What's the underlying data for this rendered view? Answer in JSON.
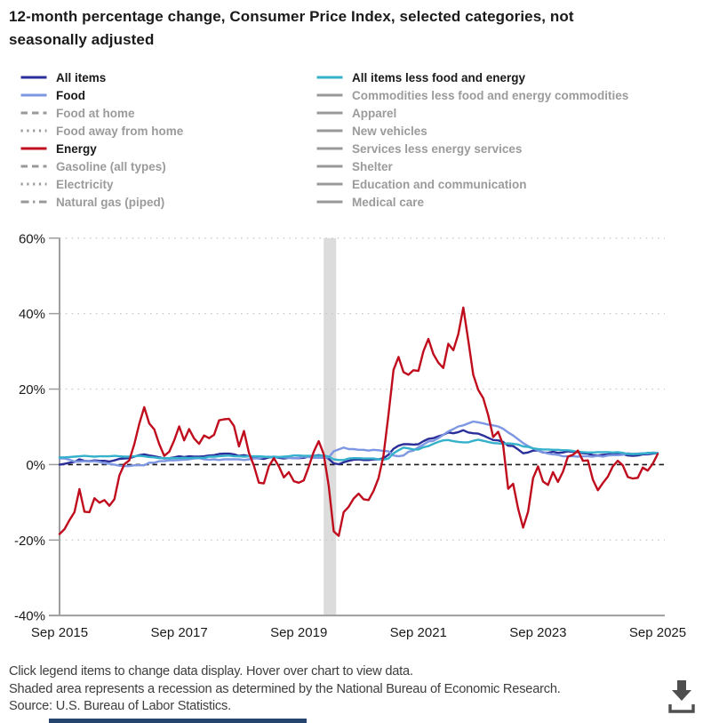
{
  "title": {
    "lines": [
      "12-month percentage change, Consumer Price Index, selected categories, not",
      "seasonally adjusted"
    ]
  },
  "legend": {
    "columns": [
      {
        "side": "left",
        "items": [
          {
            "label": "All items",
            "color": "#2a2f9a",
            "style": "solid",
            "active": true
          },
          {
            "label": "Food",
            "color": "#7e97e3",
            "style": "solid",
            "active": true
          },
          {
            "label": "Food at home",
            "color": "#999999",
            "style": "dashed",
            "active": false
          },
          {
            "label": "Food away from home",
            "color": "#999999",
            "style": "dotted",
            "active": false
          },
          {
            "label": "Energy",
            "color": "#c00d1e",
            "style": "solid",
            "active": true
          },
          {
            "label": "Gasoline (all types)",
            "color": "#999999",
            "style": "dashed",
            "active": false
          },
          {
            "label": "Electricity",
            "color": "#999999",
            "style": "dotted",
            "active": false
          },
          {
            "label": "Natural gas (piped)",
            "color": "#999999",
            "style": "dashdot",
            "active": false
          }
        ]
      },
      {
        "side": "right",
        "items": [
          {
            "label": "All items less food and energy",
            "color": "#35b1cb",
            "style": "solid",
            "active": true
          },
          {
            "label": "Commodities less food and energy commodities",
            "color": "#999999",
            "style": "solid",
            "active": false
          },
          {
            "label": "Apparel",
            "color": "#999999",
            "style": "solid",
            "active": false
          },
          {
            "label": "New vehicles",
            "color": "#999999",
            "style": "solid",
            "active": false
          },
          {
            "label": "Services less energy services",
            "color": "#999999",
            "style": "solid",
            "active": false
          },
          {
            "label": "Shelter",
            "color": "#999999",
            "style": "solid",
            "active": false
          },
          {
            "label": "Education and communication",
            "color": "#999999",
            "style": "solid",
            "active": false
          },
          {
            "label": "Medical care",
            "color": "#999999",
            "style": "solid",
            "active": false
          }
        ]
      }
    ]
  },
  "chart_data": {
    "type": "line",
    "x_unit": "month",
    "x_start_label": "Sep 2015",
    "x_end_label": "Sep 2025",
    "x_months_count": 121,
    "ylim": [
      -40,
      60
    ],
    "grid": "dotted horizontal at 60,40,20,-20; dashed black line at 0",
    "legend_position": "top, two columns, click to toggle",
    "x_ticks": [
      {
        "label": "Sep 2015",
        "month": 0
      },
      {
        "label": "Sep 2017",
        "month": 24
      },
      {
        "label": "Sep 2019",
        "month": 48
      },
      {
        "label": "Sep 2021",
        "month": 72
      },
      {
        "label": "Sep 2023",
        "month": 96
      },
      {
        "label": "Sep 2025",
        "month": 120
      }
    ],
    "y_ticks": [
      {
        "label": "60%",
        "value": 60
      },
      {
        "label": "40%",
        "value": 40
      },
      {
        "label": "20%",
        "value": 20
      },
      {
        "label": "0%",
        "value": 0
      },
      {
        "label": "-20%",
        "value": -20
      },
      {
        "label": "-40%",
        "value": -40
      }
    ],
    "recession_band": {
      "start_month": 53,
      "end_month": 55.5,
      "note": "Feb-Apr 2020 recession"
    },
    "colors": {
      "recession_band": "#dcdcdc",
      "gridline": "#c9c9c9",
      "axis": "#9e9e9e",
      "zero_line": "#1a1a1a"
    },
    "series": [
      {
        "id": "all-items",
        "name": "All items",
        "color": "#2a2f9a",
        "values": [
          0.0,
          0.2,
          0.5,
          0.7,
          1.4,
          1.0,
          0.9,
          1.1,
          1.0,
          1.0,
          0.8,
          1.1,
          1.5,
          1.6,
          1.7,
          2.1,
          2.5,
          2.7,
          2.4,
          2.2,
          1.9,
          1.6,
          1.7,
          1.9,
          2.2,
          2.0,
          2.2,
          2.1,
          2.1,
          2.2,
          2.4,
          2.5,
          2.8,
          2.9,
          2.9,
          2.7,
          2.3,
          2.5,
          2.2,
          1.9,
          1.6,
          1.5,
          1.9,
          2.0,
          1.8,
          1.6,
          1.8,
          1.7,
          1.7,
          1.8,
          2.1,
          2.3,
          2.5,
          2.3,
          1.5,
          0.3,
          0.1,
          0.6,
          1.0,
          1.3,
          1.4,
          1.2,
          1.2,
          1.4,
          1.4,
          1.7,
          2.6,
          4.2,
          5.0,
          5.4,
          5.4,
          5.3,
          5.4,
          6.2,
          6.8,
          7.0,
          7.5,
          7.9,
          8.5,
          8.3,
          8.6,
          9.1,
          8.5,
          8.3,
          8.2,
          7.7,
          7.1,
          6.5,
          6.4,
          6.0,
          5.0,
          4.9,
          4.0,
          3.0,
          3.2,
          3.7,
          3.7,
          3.2,
          3.1,
          3.4,
          3.1,
          3.2,
          3.5,
          3.4,
          3.3,
          3.0,
          2.9,
          2.5,
          2.4,
          2.6,
          2.7,
          2.9,
          3.0,
          2.8,
          2.4,
          2.3,
          2.4,
          2.7,
          2.7,
          2.9,
          3.0
        ]
      },
      {
        "id": "food",
        "name": "Food",
        "color": "#7e97e3",
        "values": [
          1.6,
          1.6,
          1.3,
          0.8,
          0.8,
          0.9,
          0.8,
          0.9,
          0.7,
          0.3,
          0.2,
          0.0,
          -0.3,
          -0.4,
          -0.4,
          -0.2,
          -0.2,
          -0.2,
          0.5,
          0.5,
          0.9,
          0.9,
          1.1,
          1.1,
          1.2,
          1.3,
          1.4,
          1.6,
          1.7,
          1.4,
          1.3,
          1.4,
          1.2,
          1.4,
          1.4,
          1.4,
          1.4,
          1.2,
          1.4,
          1.6,
          1.6,
          2.0,
          2.1,
          1.8,
          2.0,
          1.9,
          1.8,
          1.7,
          1.8,
          2.1,
          2.0,
          1.8,
          1.8,
          1.8,
          1.9,
          3.5,
          4.0,
          4.5,
          4.1,
          4.1,
          3.9,
          3.9,
          3.7,
          3.9,
          3.8,
          3.6,
          3.5,
          2.4,
          2.2,
          2.4,
          3.4,
          3.7,
          4.6,
          5.3,
          6.1,
          6.3,
          7.0,
          7.9,
          8.8,
          9.4,
          10.1,
          10.4,
          10.9,
          11.4,
          11.2,
          10.9,
          10.6,
          10.4,
          10.1,
          9.5,
          8.5,
          7.7,
          6.7,
          5.7,
          4.9,
          4.3,
          3.7,
          3.3,
          2.9,
          2.7,
          2.6,
          2.2,
          2.2,
          2.2,
          2.1,
          2.2,
          2.2,
          2.1,
          2.3,
          2.1,
          2.4,
          2.5,
          2.5,
          2.6,
          3.0,
          2.8,
          2.9,
          3.0,
          2.9,
          3.2,
          3.1
        ]
      },
      {
        "id": "core",
        "name": "All items less food and energy",
        "color": "#35b1cb",
        "values": [
          1.9,
          1.9,
          2.0,
          2.1,
          2.2,
          2.3,
          2.2,
          2.1,
          2.2,
          2.2,
          2.2,
          2.3,
          2.2,
          2.1,
          2.1,
          2.2,
          2.3,
          2.2,
          2.0,
          1.9,
          1.7,
          1.7,
          1.7,
          1.7,
          1.7,
          1.8,
          1.7,
          1.8,
          1.8,
          1.8,
          2.1,
          2.1,
          2.2,
          2.3,
          2.4,
          2.2,
          2.2,
          2.1,
          2.2,
          2.2,
          2.2,
          2.1,
          2.0,
          2.1,
          2.0,
          2.1,
          2.2,
          2.4,
          2.4,
          2.3,
          2.3,
          2.3,
          2.3,
          2.4,
          2.1,
          1.4,
          1.2,
          1.2,
          1.6,
          1.7,
          1.7,
          1.6,
          1.6,
          1.6,
          1.4,
          1.3,
          1.6,
          3.0,
          3.8,
          4.5,
          4.3,
          4.0,
          4.0,
          4.6,
          4.9,
          5.5,
          6.0,
          6.4,
          6.5,
          6.2,
          6.0,
          5.9,
          5.9,
          6.3,
          6.6,
          6.3,
          6.0,
          5.7,
          5.6,
          5.5,
          5.6,
          5.5,
          5.3,
          4.8,
          4.7,
          4.3,
          4.1,
          4.0,
          4.0,
          3.9,
          3.9,
          3.8,
          3.8,
          3.6,
          3.4,
          3.3,
          3.2,
          3.2,
          3.3,
          3.3,
          3.3,
          3.2,
          3.3,
          3.1,
          2.8,
          2.8,
          2.8,
          2.9,
          3.1,
          3.1,
          3.0
        ]
      },
      {
        "id": "energy",
        "name": "Energy",
        "color": "#c00d1e",
        "values": [
          -18.4,
          -17.1,
          -14.7,
          -12.6,
          -6.5,
          -12.5,
          -12.6,
          -8.9,
          -10.1,
          -9.4,
          -10.9,
          -9.2,
          -2.9,
          0.1,
          1.1,
          5.4,
          10.8,
          15.2,
          10.9,
          9.3,
          5.4,
          2.3,
          3.4,
          6.4,
          10.1,
          6.4,
          9.4,
          6.9,
          5.5,
          7.7,
          7.0,
          7.9,
          11.7,
          12.0,
          12.1,
          10.2,
          4.8,
          8.9,
          3.1,
          -0.3,
          -4.8,
          -5.0,
          -0.4,
          1.7,
          -0.5,
          -3.4,
          -2.0,
          -4.4,
          -4.8,
          -4.2,
          -0.6,
          3.4,
          6.2,
          2.8,
          -5.7,
          -17.7,
          -18.9,
          -12.6,
          -11.2,
          -9.0,
          -7.7,
          -9.2,
          -9.4,
          -7.0,
          -3.6,
          2.4,
          13.2,
          25.1,
          28.5,
          24.5,
          23.8,
          25.0,
          24.8,
          30.0,
          33.3,
          29.3,
          27.0,
          25.6,
          32.0,
          30.3,
          34.6,
          41.6,
          32.9,
          23.8,
          19.8,
          17.6,
          13.1,
          7.3,
          8.7,
          5.2,
          -6.4,
          -5.1,
          -11.7,
          -16.7,
          -12.5,
          -3.6,
          -0.5,
          -4.5,
          -5.4,
          -2.0,
          -4.6,
          -1.9,
          2.1,
          2.6,
          3.7,
          1.0,
          1.1,
          -4.0,
          -6.8,
          -4.9,
          -3.2,
          -0.5,
          1.0,
          -0.2,
          -3.3,
          -3.7,
          -3.5,
          -0.8,
          -1.6,
          0.2,
          2.8
        ]
      }
    ]
  },
  "footer": {
    "lines": [
      "Click legend items to change data display. Hover over chart to view data.",
      "Shaded area represents a recession as determined by the National Bureau of Economic Research.",
      "Source: U.S. Bureau of Labor Statistics."
    ]
  },
  "icons": {
    "download": "download-icon"
  }
}
